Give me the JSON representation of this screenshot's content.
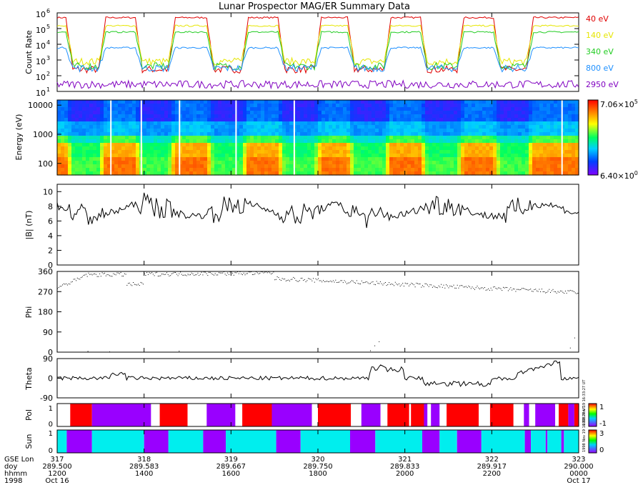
{
  "title": "Lunar Prospector MAG/ER Summary Data",
  "chart_data": [
    {
      "type": "line",
      "panel": "count-rate",
      "ylabel": "Count Rate",
      "yscale": "log",
      "ylim": [
        10,
        1000000
      ],
      "ytick_labels": [
        "10",
        "10",
        "10",
        "10",
        "10",
        "10"
      ],
      "ytick_exponents": [
        "1",
        "2",
        "3",
        "4",
        "5",
        "6"
      ],
      "series": [
        {
          "name": "40 eV",
          "color": "#e00000",
          "day": 500000,
          "night": 250
        },
        {
          "name": "140 eV",
          "color": "#e6e600",
          "day": 150000,
          "night": 800
        },
        {
          "name": "340 eV",
          "color": "#22cc22",
          "day": 60000,
          "night": 400
        },
        {
          "name": "800 eV",
          "color": "#1e90ff",
          "day": 6000,
          "night": 300
        },
        {
          "name": "2950 eV",
          "color": "#8000c0",
          "day": 28,
          "night": 28
        }
      ]
    },
    {
      "type": "heatmap",
      "panel": "energy-spectrogram",
      "ylabel": "Energy (eV)",
      "yscale": "log",
      "ylim": [
        40,
        15000
      ],
      "ytick_labels": [
        "100",
        "1000",
        "10000"
      ],
      "colorbar_max": "7.06×10",
      "colorbar_max_exp": "5",
      "colorbar_min": "6.40×10",
      "colorbar_min_exp": "0"
    },
    {
      "type": "line",
      "panel": "field-magnitude",
      "ylabel": "|B| (nT)",
      "ylim": [
        0,
        11
      ],
      "ytick_labels": [
        "0",
        "2",
        "4",
        "6",
        "8",
        "10"
      ],
      "base": 7.5
    },
    {
      "type": "scatter",
      "panel": "phi",
      "ylabel": "Phi",
      "ylim": [
        0,
        360
      ],
      "ytick_labels": [
        "0",
        "90",
        "180",
        "270",
        "360"
      ]
    },
    {
      "type": "line",
      "panel": "theta",
      "ylabel": "Theta",
      "ylim": [
        -90,
        90
      ],
      "ytick_labels": [
        "-90",
        "0",
        "90"
      ]
    },
    {
      "type": "bar",
      "panel": "polarity",
      "ylabel": "Pol",
      "colorbar_labels": [
        "1",
        "-1"
      ],
      "colorbar_stamp": "1998 Nov 19 16:33:27 UT",
      "segments": [
        {
          "x0": 0.5,
          "x1": 0.515,
          "v": 0
        },
        {
          "x0": 0.515,
          "x1": 0.54,
          "v": 1
        },
        {
          "x0": 0.54,
          "x1": 0.608,
          "v": -1
        },
        {
          "x0": 0.608,
          "x1": 0.618,
          "v": 0
        },
        {
          "x0": 0.618,
          "x1": 0.65,
          "v": 1
        },
        {
          "x0": 0.65,
          "x1": 0.672,
          "v": 0
        },
        {
          "x0": 0.672,
          "x1": 0.705,
          "v": -1
        },
        {
          "x0": 0.705,
          "x1": 0.713,
          "v": 0
        },
        {
          "x0": 0.713,
          "x1": 0.747,
          "v": 1
        },
        {
          "x0": 0.747,
          "x1": 0.793,
          "v": -1
        },
        {
          "x0": 0.793,
          "x1": 0.8,
          "v": 0
        },
        {
          "x0": 0.8,
          "x1": 0.838,
          "v": 1
        },
        {
          "x0": 0.838,
          "x1": 0.85,
          "v": 0
        },
        {
          "x0": 0.85,
          "x1": 0.872,
          "v": -1
        },
        {
          "x0": 0.872,
          "x1": 0.88,
          "v": 0
        },
        {
          "x0": 0.88,
          "x1": 0.905,
          "v": 1
        },
        {
          "x0": 0.905,
          "x1": 0.907,
          "v": 0
        },
        {
          "x0": 0.907,
          "x1": 0.922,
          "v": 1
        },
        {
          "x0": 0.922,
          "x1": 0.926,
          "v": -1
        },
        {
          "x0": 0.926,
          "x1": 0.93,
          "v": 0
        },
        {
          "x0": 0.93,
          "x1": 0.94,
          "v": -1
        },
        {
          "x0": 0.94,
          "x1": 0.948,
          "v": 0
        },
        {
          "x0": 0.948,
          "x1": 0.985,
          "v": 1
        },
        {
          "x0": 0.985,
          "x1": 0.998,
          "v": 0
        },
        {
          "x0": 0.998,
          "x1": 1.025,
          "v": 1
        },
        {
          "x0": 1.025,
          "x1": 1.037,
          "v": 0
        },
        {
          "x0": 1.037,
          "x1": 1.043,
          "v": -1
        },
        {
          "x0": 1.043,
          "x1": 1.05,
          "v": 0
        },
        {
          "x0": 1.05,
          "x1": 1.073,
          "v": -1
        },
        {
          "x0": 1.073,
          "x1": 1.077,
          "v": 0
        },
        {
          "x0": 1.077,
          "x1": 1.088,
          "v": 1
        },
        {
          "x0": 1.088,
          "x1": 1.095,
          "v": -1
        },
        {
          "x0": 1.095,
          "x1": 1.1,
          "v": 1
        }
      ]
    },
    {
      "type": "bar",
      "panel": "sunlight",
      "ylabel": "Sun",
      "colorbar_labels": [
        "3",
        "0"
      ],
      "colorbar_stamp": "1998 Nov 19 16:33:27 UT",
      "segments": [
        {
          "x0": 0.5,
          "x1": 0.511,
          "v": "sun"
        },
        {
          "x0": 0.511,
          "x1": 0.54,
          "v": "shadow"
        },
        {
          "x0": 0.54,
          "x1": 0.6,
          "v": "sun"
        },
        {
          "x0": 0.6,
          "x1": 0.628,
          "v": "shadow"
        },
        {
          "x0": 0.628,
          "x1": 0.668,
          "v": "sun"
        },
        {
          "x0": 0.668,
          "x1": 0.694,
          "v": "shadow"
        },
        {
          "x0": 0.694,
          "x1": 0.752,
          "v": "sun"
        },
        {
          "x0": 0.752,
          "x1": 0.78,
          "v": "shadow"
        },
        {
          "x0": 0.78,
          "x1": 0.837,
          "v": "sun"
        },
        {
          "x0": 0.837,
          "x1": 0.866,
          "v": "shadow"
        },
        {
          "x0": 0.866,
          "x1": 0.92,
          "v": "sun"
        },
        {
          "x0": 0.92,
          "x1": 0.94,
          "v": "shadow"
        },
        {
          "x0": 0.94,
          "x1": 0.96,
          "v": "sun"
        },
        {
          "x0": 0.96,
          "x1": 0.988,
          "v": "shadow"
        },
        {
          "x0": 0.988,
          "x1": 1.038,
          "v": "sun"
        },
        {
          "x0": 1.038,
          "x1": 1.045,
          "v": "shadow"
        },
        {
          "x0": 1.045,
          "x1": 1.062,
          "v": "sun"
        },
        {
          "x0": 1.062,
          "x1": 1.064,
          "v": "shadow"
        },
        {
          "x0": 1.064,
          "x1": 1.08,
          "v": "sun"
        },
        {
          "x0": 1.08,
          "x1": 1.083,
          "v": "shadow"
        },
        {
          "x0": 1.083,
          "x1": 1.1,
          "v": "sun"
        }
      ]
    }
  ],
  "x_axis": {
    "range": [
      0.5,
      1.1
    ],
    "row_labels": [
      "GSE Lon",
      "doy",
      "hhmm",
      "1998"
    ],
    "ticks": [
      {
        "lon": "317",
        "doy": "289.500",
        "hhmm": "1200",
        "date": "Oct 16"
      },
      {
        "lon": "318",
        "doy": "289.583",
        "hhmm": "1400",
        "date": ""
      },
      {
        "lon": "319",
        "doy": "289.667",
        "hhmm": "1600",
        "date": ""
      },
      {
        "lon": "320",
        "doy": "289.750",
        "hhmm": "1800",
        "date": ""
      },
      {
        "lon": "321",
        "doy": "289.833",
        "hhmm": "2000",
        "date": ""
      },
      {
        "lon": "322",
        "doy": "289.917",
        "hhmm": "2200",
        "date": ""
      },
      {
        "lon": "323",
        "doy": "290.000",
        "hhmm": "0000",
        "date": "Oct 17"
      }
    ]
  },
  "legend": [
    {
      "label": "40 eV",
      "color": "#e00000"
    },
    {
      "label": "140 eV",
      "color": "#e6e600"
    },
    {
      "label": "340 eV",
      "color": "#22cc22"
    },
    {
      "label": "800 eV",
      "color": "#1e90ff"
    },
    {
      "label": "2950 eV",
      "color": "#8000c0"
    }
  ],
  "wake_intervals": [
    {
      "start": 0.518,
      "end": 0.548
    },
    {
      "start": 0.598,
      "end": 0.628
    },
    {
      "start": 0.68,
      "end": 0.712
    },
    {
      "start": 0.762,
      "end": 0.796
    },
    {
      "start": 0.842,
      "end": 0.876
    },
    {
      "start": 0.926,
      "end": 0.96
    },
    {
      "start": 1.01,
      "end": 1.04
    }
  ],
  "colors": {
    "pol_positive": "#ff0000",
    "pol_negative": "#9900ff",
    "sun": "#00eeee",
    "shadow": "#9900ff"
  }
}
